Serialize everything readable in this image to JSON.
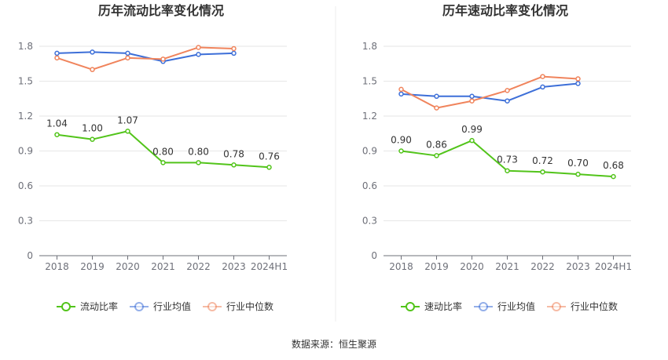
{
  "source_text": "数据来源：恒生聚源",
  "colors": {
    "main": "#52c41a",
    "avg": "#3d6fd8",
    "median": "#f0845c",
    "grid": "#e6e6e6",
    "axis": "#6e7079"
  },
  "chart_data": [
    {
      "type": "line",
      "title": "历年流动比率变化情况",
      "categories": [
        "2018",
        "2019",
        "2020",
        "2021",
        "2022",
        "2023",
        "2024H1"
      ],
      "ylim": [
        0,
        1.8
      ],
      "yticks": [
        "0",
        "0.3",
        "0.6",
        "0.9",
        "1.2",
        "1.5",
        "1.8"
      ],
      "grid": true,
      "legend_position": "bottom",
      "series": [
        {
          "name": "流动比率",
          "values": [
            1.04,
            1.0,
            1.07,
            0.8,
            0.8,
            0.78,
            0.76
          ],
          "labels": [
            "1.04",
            "1.00",
            "1.07",
            "0.80",
            "0.80",
            "0.78",
            "0.76"
          ]
        },
        {
          "name": "行业均值",
          "values": [
            1.74,
            1.75,
            1.74,
            1.67,
            1.73,
            1.74,
            null
          ]
        },
        {
          "name": "行业中位数",
          "values": [
            1.7,
            1.6,
            1.7,
            1.69,
            1.79,
            1.78,
            null
          ]
        }
      ]
    },
    {
      "type": "line",
      "title": "历年速动比率变化情况",
      "categories": [
        "2018",
        "2019",
        "2020",
        "2021",
        "2022",
        "2023",
        "2024H1"
      ],
      "ylim": [
        0,
        1.8
      ],
      "yticks": [
        "0",
        "0.3",
        "0.6",
        "0.9",
        "1.2",
        "1.5",
        "1.8"
      ],
      "grid": true,
      "legend_position": "bottom",
      "series": [
        {
          "name": "速动比率",
          "values": [
            0.9,
            0.86,
            0.99,
            0.73,
            0.72,
            0.7,
            0.68
          ],
          "labels": [
            "0.90",
            "0.86",
            "0.99",
            "0.73",
            "0.72",
            "0.70",
            "0.68"
          ]
        },
        {
          "name": "行业均值",
          "values": [
            1.39,
            1.37,
            1.37,
            1.33,
            1.45,
            1.48,
            null
          ]
        },
        {
          "name": "行业中位数",
          "values": [
            1.43,
            1.27,
            1.33,
            1.42,
            1.54,
            1.52,
            null
          ]
        }
      ]
    }
  ]
}
